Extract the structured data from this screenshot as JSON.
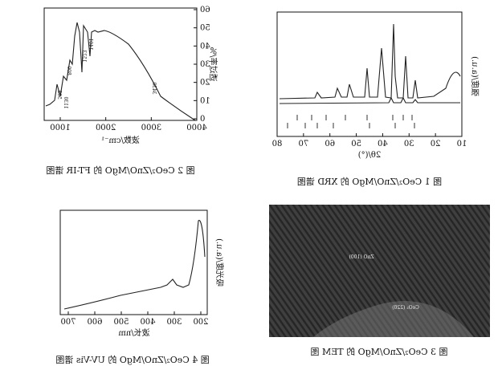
{
  "figures": [
    {
      "caption": "图 1 CeO₂/ZnO/MgO 的 XRD 谱图",
      "ylabel": "强度/(a.u.)",
      "xlabel": "2θ/(°)",
      "xticks": [
        "10",
        "20",
        "30",
        "40",
        "50",
        "60",
        "70",
        "80"
      ]
    },
    {
      "caption": "图 2 CeO₂/ZnO/MgO 的 FT-IR 谱图",
      "ylabel": "透过率/%",
      "xlabel": "波数/cm⁻¹",
      "xticks": [
        "4000",
        "3000",
        "2000",
        "1000"
      ],
      "yticks": [
        "0",
        "10",
        "20",
        "30",
        "40",
        "50",
        "60"
      ],
      "annotations": [
        "3430",
        "1523",
        "1401",
        "1130",
        "800",
        "508"
      ]
    },
    {
      "caption": "图 3 CeO₂/ZnO/MgO 的 TEM 图",
      "annotations": [
        "ZnO (100)",
        "CeO₂ (220)"
      ]
    },
    {
      "caption": "图 4 CeO₂/ZnO/MgO 的 UV-Vis 谱图",
      "ylabel": "吸光度/(a.u.)",
      "xlabel": "波长/nm",
      "xticks": [
        "200",
        "300",
        "400",
        "500",
        "600",
        "700"
      ]
    }
  ]
}
